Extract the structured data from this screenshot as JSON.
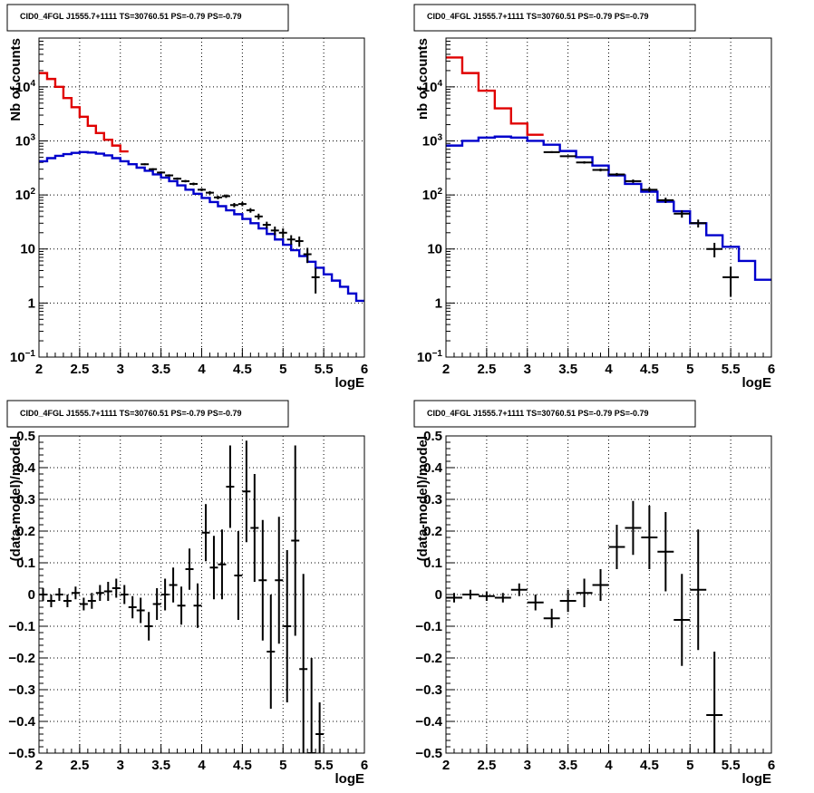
{
  "chart_data": [
    {
      "type": "line",
      "scale": "log",
      "title": "CID0_4FGL J1555.7+1111 TS=30760.51 PS=-0.79 PS=-0.79",
      "xlabel": "logE",
      "ylabel": "Nb of counts",
      "xlim": [
        2,
        6
      ],
      "ylim": [
        0.1,
        80000
      ],
      "x_ticks": [
        "2",
        "2.5",
        "3",
        "3.5",
        "4",
        "4.5",
        "5",
        "5.5",
        "6"
      ],
      "y_ticks": [
        {
          "v": 0.1,
          "base": "10",
          "exp": "−1"
        },
        {
          "v": 1,
          "t": "1"
        },
        {
          "v": 10,
          "t": "10"
        },
        {
          "v": 100,
          "base": "10",
          "exp": "2"
        },
        {
          "v": 1000,
          "base": "10",
          "exp": "3"
        },
        {
          "v": 10000,
          "base": "10",
          "exp": "4"
        }
      ],
      "grid": true,
      "series": [
        {
          "style": "hist",
          "color": "#e00000",
          "edges": [
            2.0,
            2.1,
            2.2,
            2.3,
            2.4,
            2.5,
            2.6,
            2.7,
            2.8,
            2.9,
            3.0,
            3.1
          ],
          "values": [
            18000,
            14000,
            10000,
            6200,
            4200,
            2800,
            1900,
            1400,
            1050,
            820,
            640
          ]
        },
        {
          "style": "hist",
          "color": "#0000cc",
          "edges": [
            2.0,
            2.1,
            2.2,
            2.3,
            2.4,
            2.5,
            2.6,
            2.7,
            2.8,
            2.9,
            3.0,
            3.1,
            3.2,
            3.3,
            3.4,
            3.5,
            3.6,
            3.7,
            3.8,
            3.9,
            4.0,
            4.1,
            4.2,
            4.3,
            4.4,
            4.5,
            4.6,
            4.7,
            4.8,
            4.9,
            5.0,
            5.1,
            5.2,
            5.3,
            5.4,
            5.5,
            5.6,
            5.7,
            5.8,
            5.9,
            6.0
          ],
          "values": [
            420,
            480,
            530,
            570,
            600,
            620,
            610,
            580,
            540,
            480,
            420,
            370,
            320,
            280,
            240,
            210,
            180,
            150,
            125,
            105,
            88,
            74,
            62,
            52,
            44,
            36,
            30,
            24,
            19,
            15,
            12,
            9.5,
            7.4,
            5.8,
            4.5,
            3.4,
            2.6,
            2.0,
            1.5,
            1.1
          ]
        },
        {
          "style": "errorbar",
          "color": "#000000",
          "x": [
            3.3,
            3.4,
            3.5,
            3.6,
            3.7,
            3.8,
            3.9,
            4.0,
            4.1,
            4.2,
            4.3,
            4.4,
            4.5,
            4.6,
            4.7,
            4.8,
            4.9,
            5.0,
            5.1,
            5.2,
            5.3,
            5.4
          ],
          "y": [
            370,
            300,
            260,
            230,
            200,
            180,
            160,
            125,
            110,
            90,
            95,
            65,
            68,
            52,
            40,
            28,
            22,
            20,
            15,
            14,
            8,
            3
          ],
          "xerr": 0.05,
          "yerr": [
            15,
            13,
            12,
            11,
            10,
            9,
            9,
            8,
            8,
            7,
            7,
            6,
            6,
            5,
            5,
            4,
            4,
            4,
            3,
            3,
            2.5,
            1.5
          ]
        }
      ]
    },
    {
      "type": "line",
      "scale": "log",
      "title": "CID0_4FGL J1555.7+1111 TS=30760.51 PS=-0.79 PS=-0.79",
      "xlabel": "logE",
      "ylabel": "nb of counts",
      "xlim": [
        2,
        6
      ],
      "ylim": [
        0.1,
        80000
      ],
      "x_ticks": [
        "2",
        "2.5",
        "3",
        "3.5",
        "4",
        "4.5",
        "5",
        "5.5",
        "6"
      ],
      "y_ticks": [
        {
          "v": 0.1,
          "base": "10",
          "exp": "−1"
        },
        {
          "v": 1,
          "t": "1"
        },
        {
          "v": 10,
          "t": "10"
        },
        {
          "v": 100,
          "base": "10",
          "exp": "2"
        },
        {
          "v": 1000,
          "base": "10",
          "exp": "3"
        },
        {
          "v": 10000,
          "base": "10",
          "exp": "4"
        }
      ],
      "grid": true,
      "series": [
        {
          "style": "hist",
          "color": "#e00000",
          "edges": [
            2.0,
            2.2,
            2.4,
            2.6,
            2.8,
            3.0,
            3.2
          ],
          "values": [
            35000,
            18000,
            8500,
            4000,
            2100,
            1300
          ]
        },
        {
          "style": "hist",
          "color": "#0000cc",
          "edges": [
            2.0,
            2.2,
            2.4,
            2.6,
            2.8,
            3.0,
            3.2,
            3.4,
            3.6,
            3.8,
            4.0,
            4.2,
            4.4,
            4.6,
            4.8,
            5.0,
            5.2,
            5.4,
            5.6,
            5.8,
            6.0
          ],
          "values": [
            820,
            1000,
            1150,
            1200,
            1150,
            1000,
            850,
            650,
            500,
            350,
            230,
            160,
            115,
            75,
            50,
            30,
            18,
            11,
            6,
            2.7
          ]
        },
        {
          "style": "errorbar",
          "color": "#000000",
          "x": [
            3.3,
            3.5,
            3.7,
            3.9,
            4.1,
            4.3,
            4.5,
            4.7,
            4.9,
            5.1,
            5.3,
            5.5
          ],
          "y": [
            620,
            520,
            400,
            290,
            240,
            180,
            125,
            80,
            45,
            30,
            10,
            3
          ],
          "xerr": 0.1,
          "yerr": [
            25,
            22,
            20,
            17,
            15,
            13,
            11,
            9,
            7,
            5,
            3,
            1.7
          ]
        }
      ]
    },
    {
      "type": "scatter",
      "scale": "linear",
      "title": "CID0_4FGL J1555.7+1111 TS=30760.51 PS=-0.79 PS=-0.79",
      "xlabel": "logE",
      "ylabel": "(data-model)/model",
      "xlim": [
        2,
        6
      ],
      "ylim": [
        -0.5,
        0.5
      ],
      "x_ticks": [
        "2",
        "2.5",
        "3",
        "3.5",
        "4",
        "4.5",
        "5",
        "5.5",
        "6"
      ],
      "y_ticks": [
        {
          "v": -0.5,
          "t": "−0.5"
        },
        {
          "v": -0.4,
          "t": "−0.4"
        },
        {
          "v": -0.3,
          "t": "−0.3"
        },
        {
          "v": -0.2,
          "t": "−0.2"
        },
        {
          "v": -0.1,
          "t": "−0.1"
        },
        {
          "v": 0,
          "t": "0"
        },
        {
          "v": 0.1,
          "t": "0.1"
        },
        {
          "v": 0.2,
          "t": "0.2"
        },
        {
          "v": 0.3,
          "t": "0.3"
        },
        {
          "v": 0.4,
          "t": "0.4"
        },
        {
          "v": 0.5,
          "t": "0.5"
        }
      ],
      "grid": true,
      "series": [
        {
          "style": "errorbar",
          "color": "#000000",
          "x": [
            2.05,
            2.15,
            2.25,
            2.35,
            2.45,
            2.55,
            2.65,
            2.75,
            2.85,
            2.95,
            3.05,
            3.15,
            3.25,
            3.35,
            3.45,
            3.55,
            3.65,
            3.75,
            3.85,
            3.95,
            4.05,
            4.15,
            4.25,
            4.35,
            4.45,
            4.55,
            4.65,
            4.75,
            4.85,
            4.95,
            5.05,
            5.15,
            5.25,
            5.35,
            5.45
          ],
          "y": [
            0.0,
            -0.02,
            0.0,
            -0.02,
            0.005,
            -0.03,
            -0.02,
            0.005,
            0.01,
            0.02,
            0.0,
            -0.04,
            -0.05,
            -0.1,
            -0.03,
            0.0,
            0.03,
            -0.035,
            0.08,
            -0.035,
            0.195,
            0.085,
            0.095,
            0.34,
            0.06,
            0.325,
            0.21,
            0.045,
            -0.18,
            0.045,
            -0.1,
            0.17,
            -0.235,
            -0.5,
            -0.44
          ],
          "xerr": 0.05,
          "yerr": [
            0.02,
            0.02,
            0.02,
            0.02,
            0.02,
            0.02,
            0.025,
            0.025,
            0.03,
            0.03,
            0.03,
            0.035,
            0.04,
            0.045,
            0.05,
            0.05,
            0.055,
            0.06,
            0.065,
            0.07,
            0.09,
            0.1,
            0.11,
            0.13,
            0.14,
            0.16,
            0.17,
            0.19,
            0.18,
            0.2,
            0.24,
            0.3,
            0.3,
            0.3,
            0.1
          ]
        }
      ]
    },
    {
      "type": "scatter",
      "scale": "linear",
      "title": "CID0_4FGL J1555.7+1111 TS=30760.51 PS=-0.79 PS=-0.79",
      "xlabel": "logE",
      "ylabel": "(data-model)/model",
      "xlim": [
        2,
        6
      ],
      "ylim": [
        -0.5,
        0.5
      ],
      "x_ticks": [
        "2",
        "2.5",
        "3",
        "3.5",
        "4",
        "4.5",
        "5",
        "5.5",
        "6"
      ],
      "y_ticks": [
        {
          "v": -0.5,
          "t": "−0.5"
        },
        {
          "v": -0.4,
          "t": "−0.4"
        },
        {
          "v": -0.3,
          "t": "−0.3"
        },
        {
          "v": -0.2,
          "t": "−0.2"
        },
        {
          "v": -0.1,
          "t": "−0.1"
        },
        {
          "v": 0,
          "t": "0"
        },
        {
          "v": 0.1,
          "t": "0.1"
        },
        {
          "v": 0.2,
          "t": "0.2"
        },
        {
          "v": 0.3,
          "t": "0.3"
        },
        {
          "v": 0.4,
          "t": "0.4"
        },
        {
          "v": 0.5,
          "t": "0.5"
        }
      ],
      "grid": true,
      "series": [
        {
          "style": "errorbar",
          "color": "#000000",
          "x": [
            2.1,
            2.3,
            2.5,
            2.7,
            2.9,
            3.1,
            3.3,
            3.5,
            3.7,
            3.9,
            4.1,
            4.3,
            4.5,
            4.7,
            4.9,
            5.1,
            5.3
          ],
          "y": [
            -0.01,
            0.0,
            -0.005,
            -0.01,
            0.015,
            -0.025,
            -0.075,
            -0.02,
            0.005,
            0.03,
            0.15,
            0.21,
            0.18,
            0.135,
            -0.08,
            0.015,
            -0.38
          ],
          "xerr": 0.1,
          "yerr": [
            0.015,
            0.015,
            0.015,
            0.015,
            0.02,
            0.025,
            0.03,
            0.035,
            0.045,
            0.05,
            0.07,
            0.085,
            0.1,
            0.125,
            0.145,
            0.19,
            0.2
          ]
        }
      ]
    }
  ]
}
